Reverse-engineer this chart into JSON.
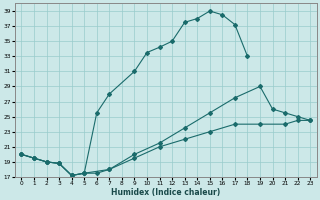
{
  "xlabel": "Humidex (Indice chaleur)",
  "bg_color": "#cce8e8",
  "grid_color": "#99cccc",
  "line_color": "#1a6b6b",
  "xlim": [
    -0.5,
    23.5
  ],
  "ylim": [
    17,
    40
  ],
  "yticks": [
    17,
    19,
    21,
    23,
    25,
    27,
    29,
    31,
    33,
    35,
    37,
    39
  ],
  "xticks": [
    0,
    1,
    2,
    3,
    4,
    5,
    6,
    7,
    8,
    9,
    10,
    11,
    12,
    13,
    14,
    15,
    16,
    17,
    18,
    19,
    20,
    21,
    22,
    23
  ],
  "line1_x": [
    0,
    1,
    2,
    3,
    4,
    5,
    6,
    7,
    9,
    10,
    11,
    12,
    13,
    14,
    15,
    16,
    17,
    18
  ],
  "line1_y": [
    20,
    19.5,
    19,
    18.8,
    17.2,
    17.5,
    25.5,
    28,
    31,
    33.5,
    34.2,
    35,
    37.5,
    38,
    39,
    38.5,
    37.2,
    33
  ],
  "line2_x": [
    0,
    1,
    2,
    3,
    4,
    5,
    6,
    7,
    9,
    11,
    13,
    15,
    17,
    19,
    20,
    21,
    22,
    23
  ],
  "line2_y": [
    20,
    19.5,
    19,
    18.8,
    17.2,
    17.5,
    17.5,
    18,
    20,
    21.5,
    23.5,
    25.5,
    27.5,
    29,
    26,
    25.5,
    25,
    24.5
  ],
  "line3_x": [
    0,
    1,
    2,
    3,
    4,
    5,
    7,
    9,
    11,
    13,
    15,
    17,
    19,
    21,
    22,
    23
  ],
  "line3_y": [
    20,
    19.5,
    19,
    18.8,
    17.2,
    17.5,
    18,
    19.5,
    21,
    22,
    23,
    24,
    24,
    24,
    24.5,
    24.5
  ]
}
